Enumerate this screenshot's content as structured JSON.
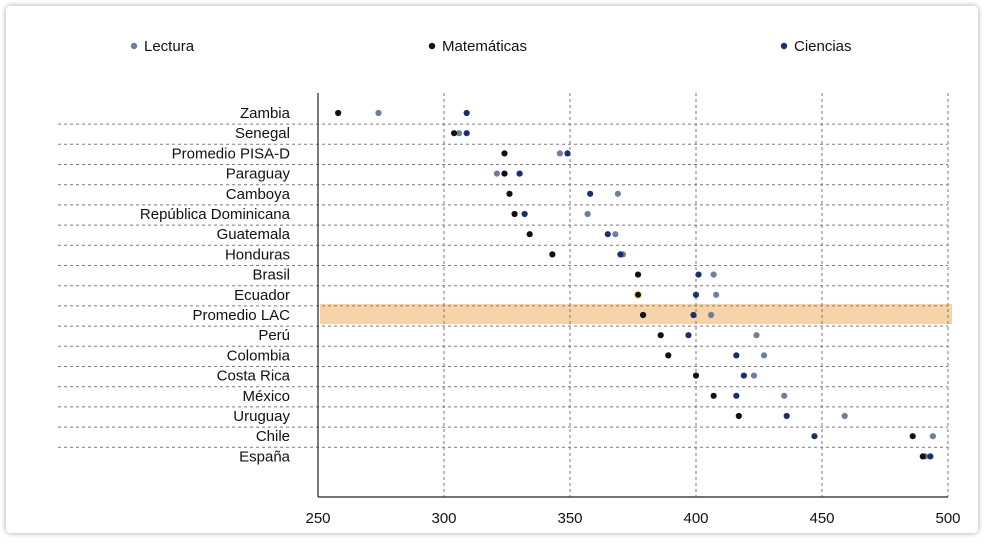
{
  "colors": {
    "lectura": "#6e7f9c",
    "matematicas": "#111111",
    "ciencias": "#1d2f6b",
    "highlight": "#f6d3a8",
    "grid": "#7a7a7a"
  },
  "chart_data": {
    "type": "scatter",
    "title": "",
    "xlabel": "",
    "ylabel": "",
    "xlim": [
      250,
      500
    ],
    "x_ticks": [
      250,
      300,
      350,
      400,
      450,
      500
    ],
    "legend_position": "top",
    "grid": true,
    "categories": [
      "Zambia",
      "Senegal",
      "Promedio PISA-D",
      "Paraguay",
      "Camboya",
      "República Dominicana",
      "Guatemala",
      "Honduras",
      "Brasil",
      "Ecuador",
      "Promedio LAC",
      "Perú",
      "Colombia",
      "Costa Rica",
      "México",
      "Uruguay",
      "Chile",
      "España"
    ],
    "highlight_category": "Ecuador",
    "series": [
      {
        "name": "Lectura",
        "color_key": "lectura",
        "values": [
          274,
          306,
          346,
          321,
          369,
          357,
          368,
          371,
          407,
          408,
          406,
          424,
          427,
          423,
          435,
          459,
          494,
          491
        ]
      },
      {
        "name": "Matemáticas",
        "color_key": "matematicas",
        "values": [
          258,
          304,
          324,
          324,
          326,
          328,
          334,
          343,
          377,
          377,
          379,
          386,
          389,
          400,
          407,
          417,
          486,
          490
        ]
      },
      {
        "name": "Ciencias",
        "color_key": "ciencias",
        "values": [
          309,
          309,
          349,
          330,
          358,
          332,
          365,
          370,
          401,
          400,
          399,
          397,
          416,
          419,
          416,
          436,
          447,
          493
        ]
      }
    ]
  }
}
